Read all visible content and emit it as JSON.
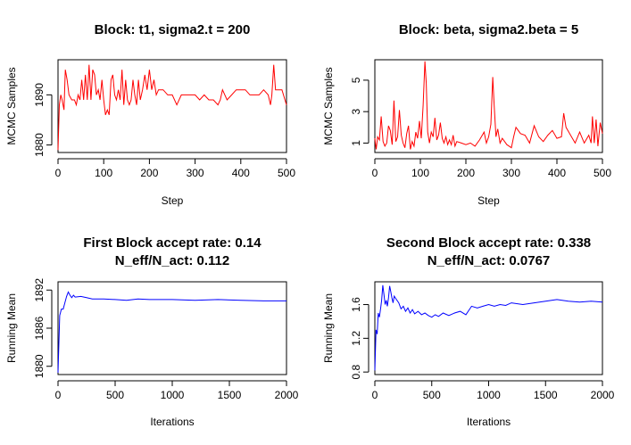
{
  "chart_data": [
    {
      "type": "line",
      "title": "Block: t1, sigma2.t = 200",
      "xlabel": "Step",
      "ylabel": "MCMC Samples",
      "xlim": [
        0,
        500
      ],
      "ylim": [
        1878.5,
        1897
      ],
      "xticks": [
        0,
        100,
        200,
        300,
        400,
        500
      ],
      "yticks": [
        1880,
        1890
      ],
      "color": "#ff0000",
      "series": [
        {
          "points": [
            [
              0,
              1879
            ],
            [
              3,
              1888
            ],
            [
              6,
              1890
            ],
            [
              9,
              1889
            ],
            [
              13,
              1887
            ],
            [
              16,
              1895
            ],
            [
              20,
              1893
            ],
            [
              24,
              1890
            ],
            [
              30,
              1889
            ],
            [
              36,
              1889
            ],
            [
              40,
              1888
            ],
            [
              44,
              1890
            ],
            [
              48,
              1889
            ],
            [
              52,
              1893
            ],
            [
              56,
              1889
            ],
            [
              60,
              1894
            ],
            [
              64,
              1889
            ],
            [
              68,
              1896
            ],
            [
              72,
              1889
            ],
            [
              76,
              1895
            ],
            [
              80,
              1894
            ],
            [
              84,
              1890
            ],
            [
              88,
              1891
            ],
            [
              92,
              1889
            ],
            [
              96,
              1893
            ],
            [
              100,
              1889
            ],
            [
              104,
              1886
            ],
            [
              108,
              1887
            ],
            [
              112,
              1886
            ],
            [
              116,
              1893
            ],
            [
              120,
              1894
            ],
            [
              124,
              1890
            ],
            [
              128,
              1889
            ],
            [
              132,
              1891
            ],
            [
              136,
              1889
            ],
            [
              140,
              1895
            ],
            [
              144,
              1888
            ],
            [
              148,
              1893
            ],
            [
              152,
              1889
            ],
            [
              156,
              1888
            ],
            [
              160,
              1889
            ],
            [
              164,
              1893
            ],
            [
              168,
              1890
            ],
            [
              172,
              1888
            ],
            [
              176,
              1893
            ],
            [
              180,
              1889
            ],
            [
              185,
              1891
            ],
            [
              190,
              1894
            ],
            [
              195,
              1891
            ],
            [
              200,
              1895
            ],
            [
              205,
              1891
            ],
            [
              210,
              1893
            ],
            [
              215,
              1890
            ],
            [
              220,
              1891
            ],
            [
              230,
              1891
            ],
            [
              240,
              1890
            ],
            [
              250,
              1890
            ],
            [
              260,
              1888
            ],
            [
              270,
              1890
            ],
            [
              280,
              1890
            ],
            [
              290,
              1890
            ],
            [
              300,
              1890
            ],
            [
              310,
              1889
            ],
            [
              320,
              1890
            ],
            [
              330,
              1889
            ],
            [
              340,
              1889
            ],
            [
              350,
              1888
            ],
            [
              355,
              1889
            ],
            [
              360,
              1891
            ],
            [
              370,
              1889
            ],
            [
              380,
              1890
            ],
            [
              390,
              1891
            ],
            [
              400,
              1891
            ],
            [
              410,
              1891
            ],
            [
              420,
              1890
            ],
            [
              430,
              1890
            ],
            [
              440,
              1890
            ],
            [
              450,
              1891
            ],
            [
              460,
              1890
            ],
            [
              465,
              1888
            ],
            [
              468,
              1890
            ],
            [
              472,
              1896
            ],
            [
              476,
              1891
            ],
            [
              480,
              1891
            ],
            [
              490,
              1891
            ],
            [
              500,
              1888
            ]
          ]
        }
      ]
    },
    {
      "type": "line",
      "title": "Block: beta, sigma2.beta = 5",
      "xlabel": "Step",
      "ylabel": "MCMC Samples",
      "xlim": [
        0,
        500
      ],
      "ylim": [
        0.4,
        6.3
      ],
      "xticks": [
        0,
        100,
        200,
        300,
        400,
        500
      ],
      "yticks": [
        1,
        3,
        5
      ],
      "color": "#ff0000",
      "series": [
        {
          "points": [
            [
              0,
              1.3
            ],
            [
              3,
              0.6
            ],
            [
              6,
              1.4
            ],
            [
              10,
              1.2
            ],
            [
              14,
              2.7
            ],
            [
              18,
              1.1
            ],
            [
              22,
              0.8
            ],
            [
              26,
              1.0
            ],
            [
              30,
              2.1
            ],
            [
              34,
              1.8
            ],
            [
              38,
              0.9
            ],
            [
              42,
              3.7
            ],
            [
              46,
              1.1
            ],
            [
              50,
              1.4
            ],
            [
              54,
              3.1
            ],
            [
              58,
              1.5
            ],
            [
              62,
              1.0
            ],
            [
              66,
              0.7
            ],
            [
              70,
              1.6
            ],
            [
              74,
              2.1
            ],
            [
              78,
              0.6
            ],
            [
              82,
              1.1
            ],
            [
              86,
              0.8
            ],
            [
              90,
              1.7
            ],
            [
              94,
              1.3
            ],
            [
              98,
              2.4
            ],
            [
              102,
              1.3
            ],
            [
              106,
              3.4
            ],
            [
              110,
              6.2
            ],
            [
              113,
              4.8
            ],
            [
              116,
              1.7
            ],
            [
              120,
              1.0
            ],
            [
              124,
              1.7
            ],
            [
              128,
              1.4
            ],
            [
              132,
              2.6
            ],
            [
              136,
              1.2
            ],
            [
              140,
              1.5
            ],
            [
              144,
              2.3
            ],
            [
              148,
              1.3
            ],
            [
              152,
              1.0
            ],
            [
              156,
              1.4
            ],
            [
              160,
              0.9
            ],
            [
              164,
              1.2
            ],
            [
              168,
              0.9
            ],
            [
              172,
              1.5
            ],
            [
              176,
              0.8
            ],
            [
              180,
              1.1
            ],
            [
              190,
              1.0
            ],
            [
              200,
              0.9
            ],
            [
              210,
              1.0
            ],
            [
              220,
              0.8
            ],
            [
              230,
              1.2
            ],
            [
              240,
              1.7
            ],
            [
              245,
              1.0
            ],
            [
              250,
              1.4
            ],
            [
              255,
              2.2
            ],
            [
              259,
              5.2
            ],
            [
              262,
              3.5
            ],
            [
              266,
              1.4
            ],
            [
              270,
              1.9
            ],
            [
              275,
              1.0
            ],
            [
              280,
              1.3
            ],
            [
              290,
              0.9
            ],
            [
              300,
              0.7
            ],
            [
              305,
              1.4
            ],
            [
              310,
              2.0
            ],
            [
              320,
              1.6
            ],
            [
              330,
              1.5
            ],
            [
              340,
              1.0
            ],
            [
              350,
              2.1
            ],
            [
              360,
              1.4
            ],
            [
              370,
              1.1
            ],
            [
              380,
              1.5
            ],
            [
              390,
              1.8
            ],
            [
              400,
              1.3
            ],
            [
              410,
              1.4
            ],
            [
              415,
              2.9
            ],
            [
              420,
              2.0
            ],
            [
              430,
              1.5
            ],
            [
              440,
              1.0
            ],
            [
              450,
              1.7
            ],
            [
              460,
              1.0
            ],
            [
              470,
              1.5
            ],
            [
              475,
              1.0
            ],
            [
              478,
              2.7
            ],
            [
              482,
              1.0
            ],
            [
              486,
              2.5
            ],
            [
              490,
              0.8
            ],
            [
              495,
              2.3
            ],
            [
              500,
              1.6
            ]
          ]
        }
      ]
    },
    {
      "type": "line",
      "title": "First Block accept rate: 0.14",
      "subtitle": "N_eff/N_act: 0.112",
      "xlabel": "Iterations",
      "ylabel": "Running Mean",
      "xlim": [
        0,
        2000
      ],
      "ylim": [
        1878.7,
        1893.3
      ],
      "xticks": [
        0,
        500,
        1000,
        1500,
        2000
      ],
      "yticks": [
        1880,
        1886,
        1892
      ],
      "color": "#0000ff",
      "series": [
        {
          "points": [
            [
              0,
              1879
            ],
            [
              15,
              1888
            ],
            [
              30,
              1889
            ],
            [
              45,
              1889
            ],
            [
              60,
              1890
            ],
            [
              75,
              1891
            ],
            [
              90,
              1891.7
            ],
            [
              105,
              1891.2
            ],
            [
              120,
              1890.8
            ],
            [
              135,
              1891.2
            ],
            [
              150,
              1890.9
            ],
            [
              200,
              1891.0
            ],
            [
              250,
              1890.8
            ],
            [
              300,
              1890.6
            ],
            [
              400,
              1890.6
            ],
            [
              500,
              1890.5
            ],
            [
              600,
              1890.4
            ],
            [
              700,
              1890.6
            ],
            [
              800,
              1890.5
            ],
            [
              900,
              1890.5
            ],
            [
              1000,
              1890.5
            ],
            [
              1200,
              1890.4
            ],
            [
              1400,
              1890.5
            ],
            [
              1600,
              1890.4
            ],
            [
              1800,
              1890.3
            ],
            [
              2000,
              1890.3
            ]
          ]
        }
      ]
    },
    {
      "type": "line",
      "title": "Second Block accept rate: 0.338",
      "subtitle": "N_eff/N_act: 0.0767",
      "xlabel": "Iterations",
      "ylabel": "Running Mean",
      "xlim": [
        0,
        2000
      ],
      "ylim": [
        0.77,
        1.87
      ],
      "xticks": [
        0,
        500,
        1000,
        1500,
        2000
      ],
      "yticks": [
        0.8,
        1.2,
        1.6
      ],
      "color": "#0000ff",
      "series": [
        {
          "points": [
            [
              0,
              0.82
            ],
            [
              10,
              1.3
            ],
            [
              20,
              1.25
            ],
            [
              30,
              1.5
            ],
            [
              40,
              1.45
            ],
            [
              50,
              1.55
            ],
            [
              60,
              1.65
            ],
            [
              70,
              1.83
            ],
            [
              80,
              1.72
            ],
            [
              90,
              1.6
            ],
            [
              100,
              1.65
            ],
            [
              110,
              1.58
            ],
            [
              120,
              1.68
            ],
            [
              130,
              1.82
            ],
            [
              140,
              1.75
            ],
            [
              150,
              1.68
            ],
            [
              160,
              1.62
            ],
            [
              170,
              1.7
            ],
            [
              190,
              1.66
            ],
            [
              210,
              1.62
            ],
            [
              230,
              1.55
            ],
            [
              250,
              1.58
            ],
            [
              270,
              1.52
            ],
            [
              290,
              1.56
            ],
            [
              310,
              1.5
            ],
            [
              330,
              1.54
            ],
            [
              350,
              1.49
            ],
            [
              380,
              1.52
            ],
            [
              410,
              1.48
            ],
            [
              440,
              1.5
            ],
            [
              470,
              1.47
            ],
            [
              500,
              1.45
            ],
            [
              530,
              1.48
            ],
            [
              560,
              1.46
            ],
            [
              600,
              1.5
            ],
            [
              650,
              1.47
            ],
            [
              700,
              1.5
            ],
            [
              750,
              1.52
            ],
            [
              800,
              1.48
            ],
            [
              850,
              1.58
            ],
            [
              900,
              1.56
            ],
            [
              950,
              1.58
            ],
            [
              1000,
              1.6
            ],
            [
              1050,
              1.58
            ],
            [
              1100,
              1.6
            ],
            [
              1150,
              1.59
            ],
            [
              1200,
              1.62
            ],
            [
              1300,
              1.6
            ],
            [
              1400,
              1.62
            ],
            [
              1500,
              1.64
            ],
            [
              1600,
              1.66
            ],
            [
              1700,
              1.64
            ],
            [
              1800,
              1.63
            ],
            [
              1900,
              1.64
            ],
            [
              2000,
              1.63
            ]
          ]
        }
      ]
    }
  ]
}
